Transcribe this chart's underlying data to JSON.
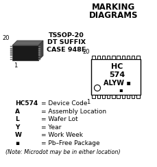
{
  "title_line1": "MARKING",
  "title_line2": "DIAGRAMS",
  "background_color": "#ffffff",
  "chip_label_lines": [
    "TSSOP-20",
    "DT SUFFIX",
    "CASE 948E"
  ],
  "legend_rows": [
    [
      "HC574",
      "= Device Code"
    ],
    [
      "A",
      "= Assembly Location"
    ],
    [
      "L",
      "= Wafer Lot"
    ],
    [
      "Y",
      "= Year"
    ],
    [
      "W",
      "= Work Week"
    ],
    [
      "▪",
      "= Pb–Free Package"
    ]
  ],
  "note": "(Note: Microdot may be in either location)",
  "num_pins_per_side": 10,
  "fig_width": 2.3,
  "fig_height": 2.43,
  "dpi": 100
}
